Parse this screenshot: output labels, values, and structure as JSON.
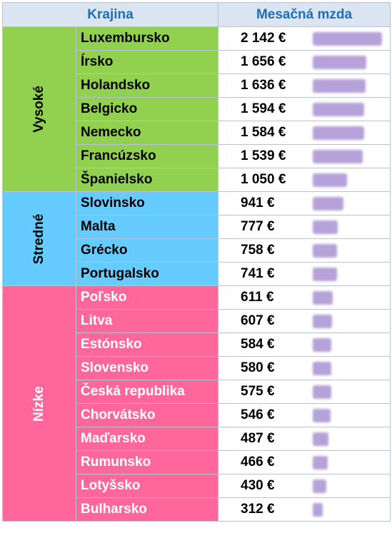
{
  "header": {
    "country": "Krajina",
    "wage": "Mesačná mzda"
  },
  "colors": {
    "header_bg": "#dbe5f1",
    "header_text": "#1f6db3",
    "high": "#92d050",
    "medium": "#66ccff",
    "low": "#ff6699",
    "bar": "#b6a2d9",
    "border": "#b9c3cf"
  },
  "max_wage": 2142,
  "groups": [
    {
      "label": "Vysoké",
      "color": "#92d050",
      "text_color": "#000000",
      "rows": [
        {
          "country": "Luxembursko",
          "wage": "2 142 €",
          "value": 2142
        },
        {
          "country": "Írsko",
          "wage": "1 656 €",
          "value": 1656
        },
        {
          "country": "Holandsko",
          "wage": "1 636 €",
          "value": 1636
        },
        {
          "country": "Belgicko",
          "wage": "1 594 €",
          "value": 1594
        },
        {
          "country": "Nemecko",
          "wage": "1 584 €",
          "value": 1584
        },
        {
          "country": "Francúzsko",
          "wage": "1 539 €",
          "value": 1539
        },
        {
          "country": "Španielsko",
          "wage": "1 050 €",
          "value": 1050
        }
      ]
    },
    {
      "label": "Stredné",
      "color": "#66ccff",
      "text_color": "#000000",
      "rows": [
        {
          "country": "Slovinsko",
          "wage": "941 €",
          "value": 941
        },
        {
          "country": "Malta",
          "wage": "777 €",
          "value": 777
        },
        {
          "country": "Grécko",
          "wage": "758 €",
          "value": 758
        },
        {
          "country": "Portugalsko",
          "wage": "741 €",
          "value": 741
        }
      ]
    },
    {
      "label": "Nízke",
      "color": "#ff6699",
      "text_color": "#ffffff",
      "rows": [
        {
          "country": "Poľsko",
          "wage": "611 €",
          "value": 611
        },
        {
          "country": "Litva",
          "wage": "607 €",
          "value": 607
        },
        {
          "country": "Estónsko",
          "wage": "584 €",
          "value": 584
        },
        {
          "country": "Slovensko",
          "wage": "580 €",
          "value": 580
        },
        {
          "country": "Česká republika",
          "wage": "575 €",
          "value": 575
        },
        {
          "country": "Chorvátsko",
          "wage": "546 €",
          "value": 546
        },
        {
          "country": "Maďarsko",
          "wage": "487 €",
          "value": 487
        },
        {
          "country": "Rumunsko",
          "wage": "466 €",
          "value": 466
        },
        {
          "country": "Lotyšsko",
          "wage": "430 €",
          "value": 430
        },
        {
          "country": "Bulharsko",
          "wage": "312 €",
          "value": 312
        }
      ]
    }
  ]
}
